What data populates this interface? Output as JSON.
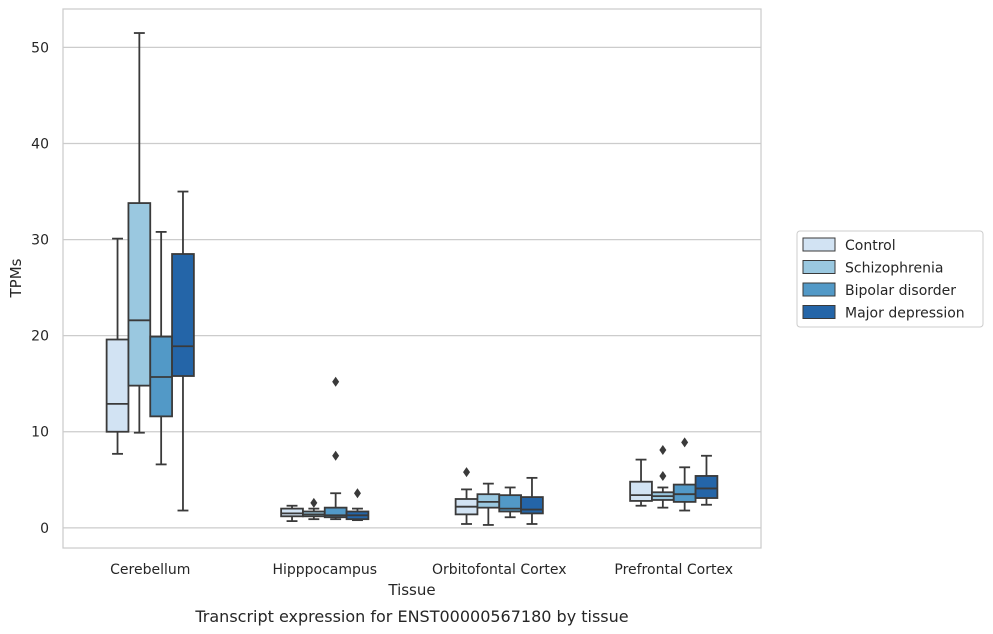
{
  "chart_data": {
    "type": "box",
    "xlabel": "Tissue",
    "ylabel": "TPMs",
    "caption": "Transcript expression for ENST00000567180 by tissue",
    "ylim": [
      -2.1,
      54
    ],
    "yticks": [
      0,
      10,
      20,
      30,
      40,
      50
    ],
    "grid": "horizontal",
    "legend_position": "right",
    "categories": [
      "Cerebellum",
      "Hipppocampus",
      "Orbitofontal Cortex",
      "Prefrontal Cortex"
    ],
    "series": [
      {
        "name": "Control",
        "color": "#d2e3f3",
        "boxes": [
          {
            "whislo": 7.7,
            "q1": 10.0,
            "med": 12.9,
            "q3": 19.6,
            "whishi": 30.1,
            "fliers": []
          },
          {
            "whislo": 0.7,
            "q1": 1.2,
            "med": 1.5,
            "q3": 2.0,
            "whishi": 2.3,
            "fliers": []
          },
          {
            "whislo": 0.4,
            "q1": 1.4,
            "med": 2.2,
            "q3": 3.0,
            "whishi": 4.0,
            "fliers": [
              5.8
            ]
          },
          {
            "whislo": 2.3,
            "q1": 2.8,
            "med": 3.4,
            "q3": 4.8,
            "whishi": 7.1,
            "fliers": []
          }
        ]
      },
      {
        "name": "Schizophrenia",
        "color": "#9ac8e0",
        "boxes": [
          {
            "whislo": 9.9,
            "q1": 14.8,
            "med": 21.6,
            "q3": 33.8,
            "whishi": 51.5,
            "fliers": []
          },
          {
            "whislo": 0.9,
            "q1": 1.2,
            "med": 1.4,
            "q3": 1.7,
            "whishi": 2.0,
            "fliers": [
              2.6
            ]
          },
          {
            "whislo": 0.3,
            "q1": 2.1,
            "med": 2.7,
            "q3": 3.5,
            "whishi": 4.6,
            "fliers": []
          },
          {
            "whislo": 2.1,
            "q1": 2.9,
            "med": 3.3,
            "q3": 3.7,
            "whishi": 4.2,
            "fliers": [
              5.4,
              8.1
            ]
          }
        ]
      },
      {
        "name": "Bipolar disorder",
        "color": "#5299c7",
        "boxes": [
          {
            "whislo": 6.6,
            "q1": 11.6,
            "med": 15.7,
            "q3": 19.9,
            "whishi": 30.8,
            "fliers": []
          },
          {
            "whislo": 0.9,
            "q1": 1.1,
            "med": 1.3,
            "q3": 2.1,
            "whishi": 3.6,
            "fliers": [
              7.5,
              15.2
            ]
          },
          {
            "whislo": 1.1,
            "q1": 1.7,
            "med": 2.0,
            "q3": 3.4,
            "whishi": 4.2,
            "fliers": []
          },
          {
            "whislo": 1.8,
            "q1": 2.7,
            "med": 3.5,
            "q3": 4.5,
            "whishi": 6.3,
            "fliers": [
              8.9
            ]
          }
        ]
      },
      {
        "name": "Major depression",
        "color": "#2465a8",
        "boxes": [
          {
            "whislo": 1.8,
            "q1": 15.8,
            "med": 18.9,
            "q3": 28.5,
            "whishi": 35.0,
            "fliers": []
          },
          {
            "whislo": 0.8,
            "q1": 0.9,
            "med": 1.3,
            "q3": 1.7,
            "whishi": 2.0,
            "fliers": [
              3.6
            ]
          },
          {
            "whislo": 0.4,
            "q1": 1.5,
            "med": 1.9,
            "q3": 3.2,
            "whishi": 5.2,
            "fliers": []
          },
          {
            "whislo": 2.4,
            "q1": 3.1,
            "med": 4.1,
            "q3": 5.4,
            "whishi": 7.5,
            "fliers": []
          }
        ]
      }
    ]
  }
}
